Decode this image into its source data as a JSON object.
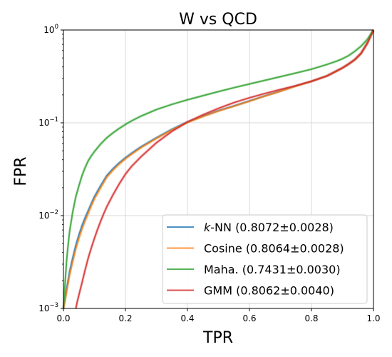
{
  "chart_data": {
    "type": "line",
    "title": "W vs QCD",
    "xlabel": "TPR",
    "ylabel": "FPR",
    "xlim": [
      0,
      1
    ],
    "ylim": [
      0.001,
      1
    ],
    "yscale": "log",
    "grid": true,
    "legend_position": "lower-right",
    "x_ticks": [
      {
        "value": 0.0,
        "label": "0.0"
      },
      {
        "value": 0.2,
        "label": "0.2"
      },
      {
        "value": 0.4,
        "label": "0.4"
      },
      {
        "value": 0.6,
        "label": "0.6"
      },
      {
        "value": 0.8,
        "label": "0.8"
      },
      {
        "value": 1.0,
        "label": "1.0"
      }
    ],
    "y_ticks": [
      {
        "value": 0.001,
        "base": "10",
        "exp": "−3"
      },
      {
        "value": 0.01,
        "base": "10",
        "exp": "−2"
      },
      {
        "value": 0.1,
        "base": "10",
        "exp": "−1"
      },
      {
        "value": 1,
        "base": "10",
        "exp": "0"
      }
    ],
    "series": [
      {
        "name": "k-NN",
        "name_italic": "k",
        "name_rest": "-NN (0.8072±0.0028)",
        "color": "#1f77b4",
        "x": [
          0.0,
          0.005,
          0.01,
          0.02,
          0.03,
          0.04,
          0.05,
          0.06,
          0.07,
          0.08,
          0.09,
          0.1,
          0.12,
          0.14,
          0.16,
          0.18,
          0.2,
          0.22,
          0.25,
          0.3,
          0.35,
          0.4,
          0.45,
          0.5,
          0.55,
          0.6,
          0.65,
          0.7,
          0.75,
          0.8,
          0.85,
          0.88,
          0.9,
          0.92,
          0.94,
          0.96,
          0.98,
          1.0
        ],
        "y": [
          0.001,
          0.00125,
          0.0016,
          0.0025,
          0.0035,
          0.0048,
          0.0062,
          0.0078,
          0.0095,
          0.0113,
          0.0135,
          0.016,
          0.021,
          0.027,
          0.032,
          0.037,
          0.042,
          0.047,
          0.055,
          0.069,
          0.085,
          0.102,
          0.118,
          0.135,
          0.152,
          0.172,
          0.195,
          0.22,
          0.25,
          0.28,
          0.32,
          0.36,
          0.39,
          0.43,
          0.48,
          0.56,
          0.72,
          1.0
        ]
      },
      {
        "name": "Cosine",
        "name_italic": "",
        "name_rest": "Cosine (0.8064±0.0028)",
        "color": "#ff7f0e",
        "x": [
          0.0,
          0.005,
          0.01,
          0.02,
          0.03,
          0.04,
          0.05,
          0.06,
          0.07,
          0.08,
          0.09,
          0.1,
          0.12,
          0.14,
          0.16,
          0.18,
          0.2,
          0.22,
          0.25,
          0.3,
          0.35,
          0.4,
          0.45,
          0.5,
          0.55,
          0.6,
          0.65,
          0.7,
          0.75,
          0.8,
          0.85,
          0.88,
          0.9,
          0.92,
          0.94,
          0.96,
          0.98,
          1.0
        ],
        "y": [
          0.001,
          0.0012,
          0.0015,
          0.0023,
          0.0032,
          0.0044,
          0.0057,
          0.0072,
          0.0088,
          0.0106,
          0.0128,
          0.0152,
          0.02,
          0.026,
          0.031,
          0.036,
          0.041,
          0.046,
          0.054,
          0.068,
          0.084,
          0.101,
          0.117,
          0.134,
          0.151,
          0.171,
          0.194,
          0.219,
          0.249,
          0.28,
          0.32,
          0.36,
          0.39,
          0.43,
          0.48,
          0.56,
          0.72,
          1.0
        ]
      },
      {
        "name": "Maha.",
        "name_italic": "",
        "name_rest": "Maha. (0.7431±0.0030)",
        "color": "#2ca02c",
        "x": [
          0.0,
          0.005,
          0.01,
          0.015,
          0.02,
          0.03,
          0.04,
          0.05,
          0.06,
          0.07,
          0.08,
          0.09,
          0.1,
          0.12,
          0.14,
          0.16,
          0.18,
          0.2,
          0.22,
          0.25,
          0.3,
          0.35,
          0.4,
          0.45,
          0.5,
          0.55,
          0.6,
          0.65,
          0.7,
          0.75,
          0.8,
          0.85,
          0.88,
          0.9,
          0.92,
          0.94,
          0.96,
          0.98,
          1.0
        ],
        "y": [
          0.001,
          0.0018,
          0.0032,
          0.0048,
          0.0068,
          0.011,
          0.016,
          0.021,
          0.027,
          0.033,
          0.039,
          0.044,
          0.049,
          0.059,
          0.069,
          0.078,
          0.087,
          0.096,
          0.105,
          0.118,
          0.139,
          0.158,
          0.177,
          0.196,
          0.217,
          0.239,
          0.262,
          0.287,
          0.314,
          0.344,
          0.378,
          0.425,
          0.46,
          0.49,
          0.53,
          0.59,
          0.67,
          0.79,
          1.0
        ]
      },
      {
        "name": "GMM",
        "name_italic": "",
        "name_rest": "GMM (0.8062±0.0040)",
        "color": "#d62728",
        "x": [
          0.04,
          0.045,
          0.05,
          0.06,
          0.07,
          0.08,
          0.09,
          0.1,
          0.11,
          0.12,
          0.13,
          0.14,
          0.15,
          0.16,
          0.18,
          0.2,
          0.22,
          0.25,
          0.3,
          0.35,
          0.4,
          0.45,
          0.5,
          0.55,
          0.6,
          0.65,
          0.7,
          0.75,
          0.8,
          0.85,
          0.88,
          0.9,
          0.92,
          0.94,
          0.96,
          0.98,
          1.0
        ],
        "y": [
          0.001,
          0.0012,
          0.0014,
          0.0019,
          0.0026,
          0.0035,
          0.0045,
          0.0057,
          0.0071,
          0.0087,
          0.0105,
          0.0125,
          0.0145,
          0.0168,
          0.022,
          0.028,
          0.034,
          0.043,
          0.061,
          0.081,
          0.102,
          0.122,
          0.143,
          0.165,
          0.186,
          0.207,
          0.229,
          0.251,
          0.28,
          0.32,
          0.36,
          0.39,
          0.43,
          0.48,
          0.56,
          0.72,
          1.0
        ]
      }
    ]
  }
}
